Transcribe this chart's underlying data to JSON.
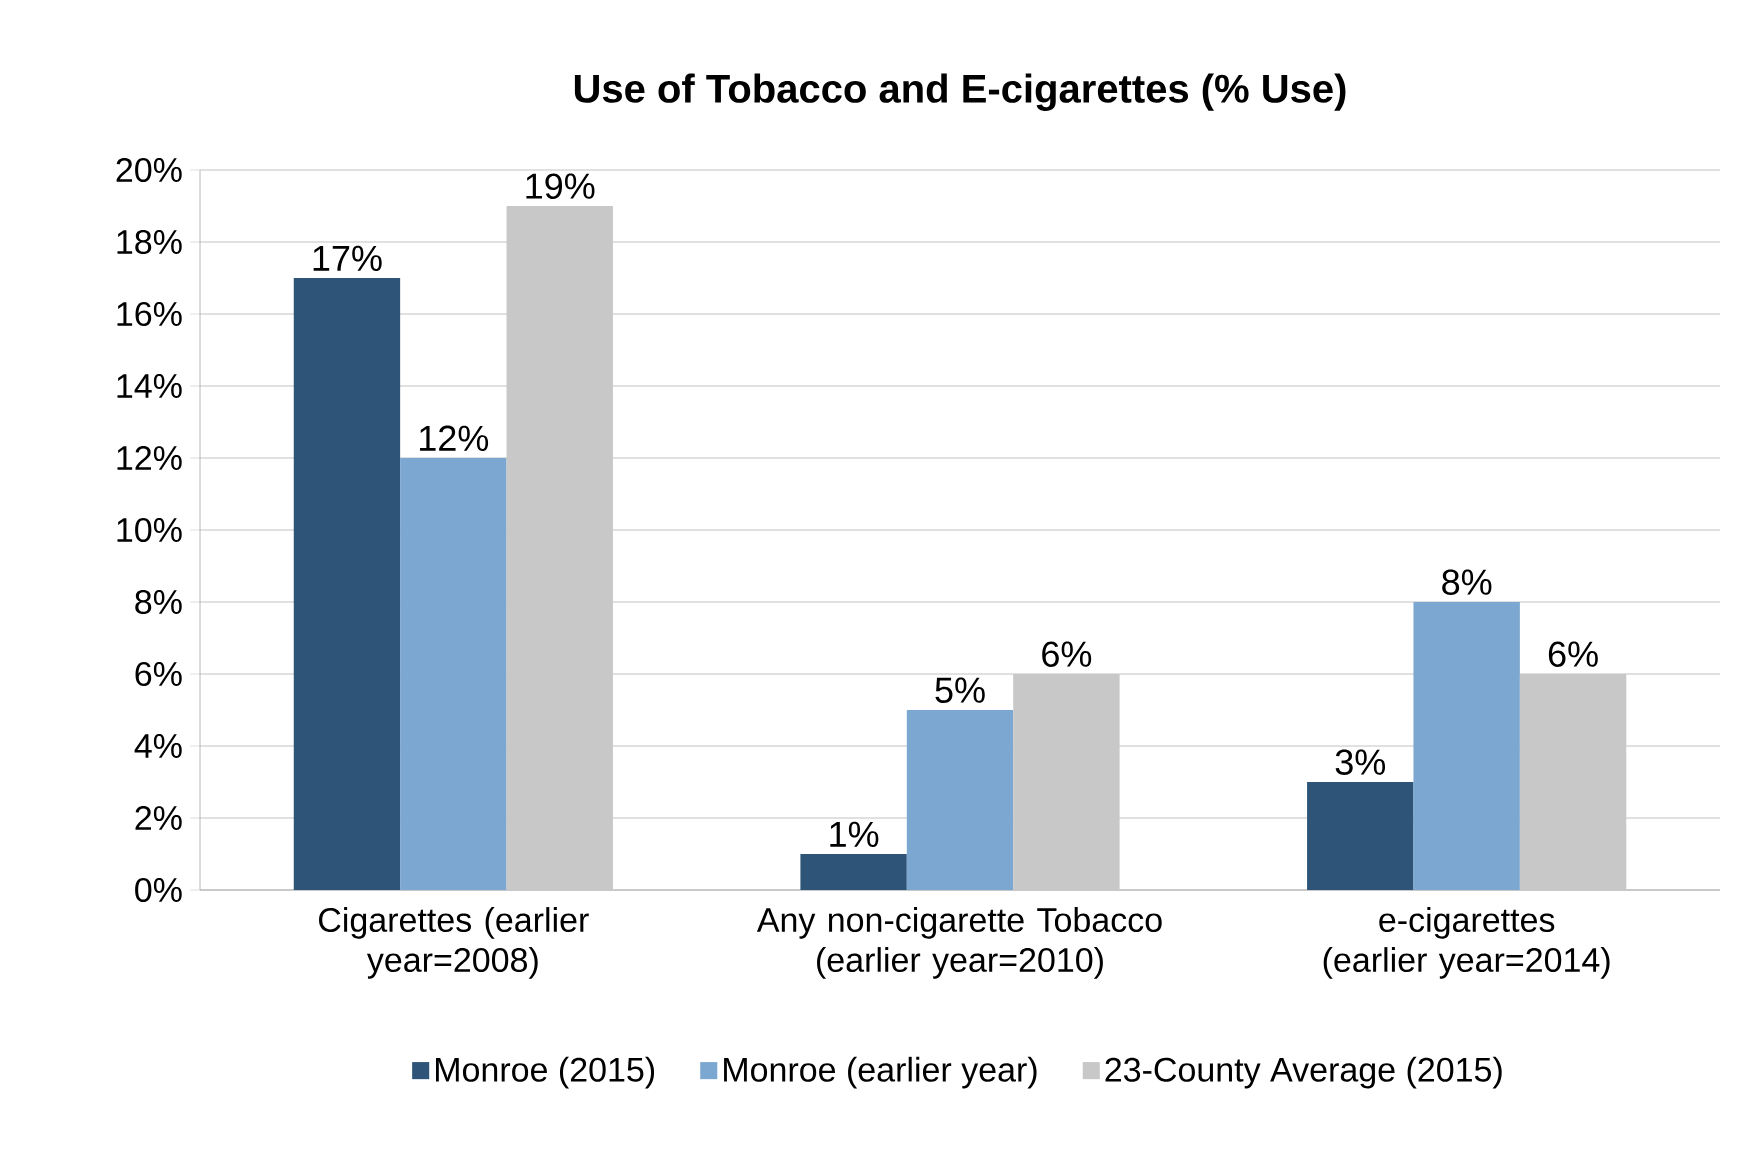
{
  "chart_data": {
    "type": "bar",
    "title": "Use of Tobacco and E-cigarettes (% Use)",
    "categories": [
      "Cigarettes (earlier year=2008)",
      "Any non-cigarette Tobacco (earlier year=2010)",
      "e-cigarettes (earlier year=2014)"
    ],
    "series": [
      {
        "name": "Monroe (2015)",
        "color": "#2e5577",
        "values": [
          17,
          1,
          3
        ],
        "value_labels": [
          "17%",
          "1%",
          "3%"
        ]
      },
      {
        "name": "Monroe (earlier year)",
        "color": "#7ba7d0",
        "values": [
          12,
          5,
          8
        ],
        "value_labels": [
          "12%",
          "5%",
          "8%"
        ]
      },
      {
        "name": "23-County Average (2015)",
        "color": "#c8c8c8",
        "values": [
          19,
          6,
          6
        ],
        "value_labels": [
          "19%",
          "6%",
          "6%"
        ]
      }
    ],
    "ylim": [
      0,
      20
    ],
    "yticks": [
      {
        "value": 0,
        "label": "0%"
      },
      {
        "value": 2,
        "label": "2%"
      },
      {
        "value": 4,
        "label": "4%"
      },
      {
        "value": 6,
        "label": "6%"
      },
      {
        "value": 8,
        "label": "8%"
      },
      {
        "value": 10,
        "label": "10%"
      },
      {
        "value": 12,
        "label": "12%"
      },
      {
        "value": 14,
        "label": "14%"
      },
      {
        "value": 16,
        "label": "16%"
      },
      {
        "value": 18,
        "label": "18%"
      },
      {
        "value": 20,
        "label": "20%"
      }
    ],
    "grid": "y",
    "legend": "bottom"
  }
}
